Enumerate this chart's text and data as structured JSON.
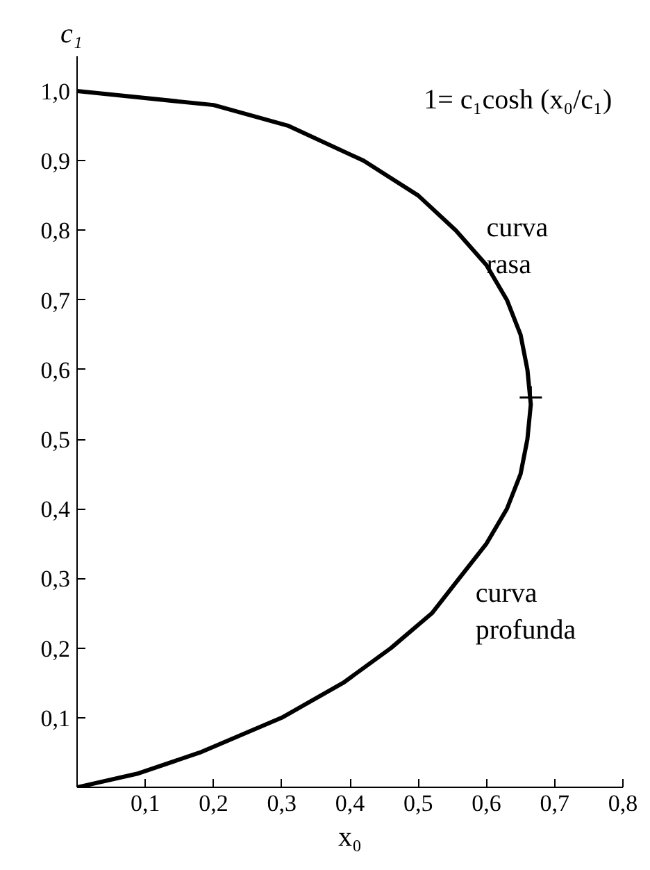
{
  "chart_data": {
    "type": "line",
    "xlabel": "x₀",
    "ylabel": "c₁",
    "series": [
      {
        "color": "#000000",
        "x": [
          0,
          0.09,
          0.18,
          0.3,
          0.39,
          0.46,
          0.52,
          0.56,
          0.6,
          0.63,
          0.65,
          0.66,
          0.665,
          0.66,
          0.65,
          0.63,
          0.6,
          0.555,
          0.5,
          0.42,
          0.31,
          0.2,
          0
        ],
        "values": [
          0,
          0.02,
          0.05,
          0.1,
          0.15,
          0.2,
          0.25,
          0.3,
          0.35,
          0.4,
          0.45,
          0.5,
          0.55,
          0.6,
          0.65,
          0.7,
          0.75,
          0.8,
          0.85,
          0.9,
          0.95,
          0.98,
          1.0
        ]
      },
      {
        "type": "scatter",
        "marker": "cross",
        "color": "#000000",
        "x": [
          0.665
        ],
        "values": [
          0.56
        ]
      }
    ],
    "annotations": [
      "1= c₁cosh (x₀/c₁)",
      "curva\nrasa",
      "curva\nprofunda"
    ],
    "xlim": [
      0,
      0.8
    ],
    "ylim": [
      0,
      1.05
    ],
    "xticks": [
      {
        "value": 0.1,
        "label": "0,1"
      },
      {
        "value": 0.2,
        "label": "0,2"
      },
      {
        "value": 0.3,
        "label": "0,3"
      },
      {
        "value": 0.4,
        "label": "0,4"
      },
      {
        "value": 0.5,
        "label": "0,5"
      },
      {
        "value": 0.6,
        "label": "0,6"
      },
      {
        "value": 0.7,
        "label": "0,7"
      },
      {
        "value": 0.8,
        "label": "0,8"
      }
    ],
    "yticks": [
      {
        "value": 0.1,
        "label": "0,1"
      },
      {
        "value": 0.2,
        "label": "0,2"
      },
      {
        "value": 0.3,
        "label": "0,3"
      },
      {
        "value": 0.4,
        "label": "0,4"
      },
      {
        "value": 0.5,
        "label": "0,5"
      },
      {
        "value": 0.6,
        "label": "0,6"
      },
      {
        "value": 0.7,
        "label": "0,7"
      },
      {
        "value": 0.8,
        "label": "0,8"
      },
      {
        "value": 0.9,
        "label": "0,9"
      },
      {
        "value": 1.0,
        "label": "1,0"
      }
    ],
    "grid": false,
    "line_style": "solid"
  }
}
